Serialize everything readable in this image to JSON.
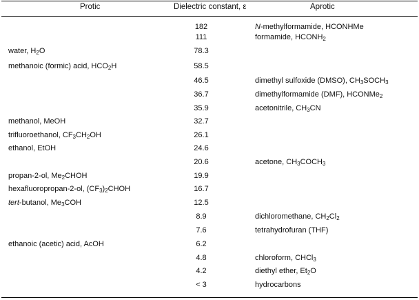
{
  "headers": {
    "protic": "Protic",
    "dielectric": "Dielectric constant, ε",
    "aprotic": "Aprotic"
  },
  "rows": [
    {
      "protic": "",
      "eps": "182",
      "aprotic": "<i>N</i>-methylformamide, HCONHMe"
    },
    {
      "protic": "",
      "eps": "111",
      "aprotic": "formamide, HCONH<sub>2</sub>"
    },
    {
      "protic": "water, H<sub>2</sub>O",
      "eps": "78.3",
      "aprotic": ""
    },
    {
      "protic": "methanoic (formic) acid, HCO<sub>2</sub>H",
      "eps": "58.5",
      "aprotic": ""
    },
    {
      "protic": "",
      "eps": "46.5",
      "aprotic": "dimethyl sulfoxide (DMSO), CH<sub>3</sub>SOCH<sub>3</sub>"
    },
    {
      "protic": "",
      "eps": "36.7",
      "aprotic": "dimethylformamide (DMF), HCONMe<sub>2</sub>"
    },
    {
      "protic": "",
      "eps": "35.9",
      "aprotic": "acetonitrile, CH<sub>3</sub>CN"
    },
    {
      "protic": "methanol, MeOH",
      "eps": "32.7",
      "aprotic": ""
    },
    {
      "protic": "trifluoroethanol, CF<sub>3</sub>CH<sub>2</sub>OH",
      "eps": "26.1",
      "aprotic": ""
    },
    {
      "protic": "ethanol, EtOH",
      "eps": "24.6",
      "aprotic": ""
    },
    {
      "protic": "",
      "eps": "20.6",
      "aprotic": "acetone, CH<sub>3</sub>COCH<sub>3</sub>"
    },
    {
      "protic": "propan-2-ol, Me<sub>2</sub>CHOH",
      "eps": "19.9",
      "aprotic": ""
    },
    {
      "protic": "hexafluoropropan-2-ol, (CF<sub>3</sub>)<sub>2</sub>CHOH",
      "eps": "16.7",
      "aprotic": ""
    },
    {
      "protic": "<i>tert</i>-butanol, Me<sub>3</sub>COH",
      "eps": "12.5",
      "aprotic": ""
    },
    {
      "protic": "",
      "eps": "8.9",
      "aprotic": "dichloromethane, CH<sub>2</sub>Cl<sub>2</sub>"
    },
    {
      "protic": "",
      "eps": "7.6",
      "aprotic": "tetrahydrofuran (THF)"
    },
    {
      "protic": "ethanoic (acetic) acid, AcOH",
      "eps": "6.2",
      "aprotic": ""
    },
    {
      "protic": "",
      "eps": "4.8",
      "aprotic": "chloroform, CHCl<sub>3</sub>"
    },
    {
      "protic": "",
      "eps": "4.2",
      "aprotic": "diethyl ether, Et<sub>2</sub>O"
    },
    {
      "protic": "",
      "eps": "< 3",
      "aprotic": "hydrocarbons"
    }
  ]
}
